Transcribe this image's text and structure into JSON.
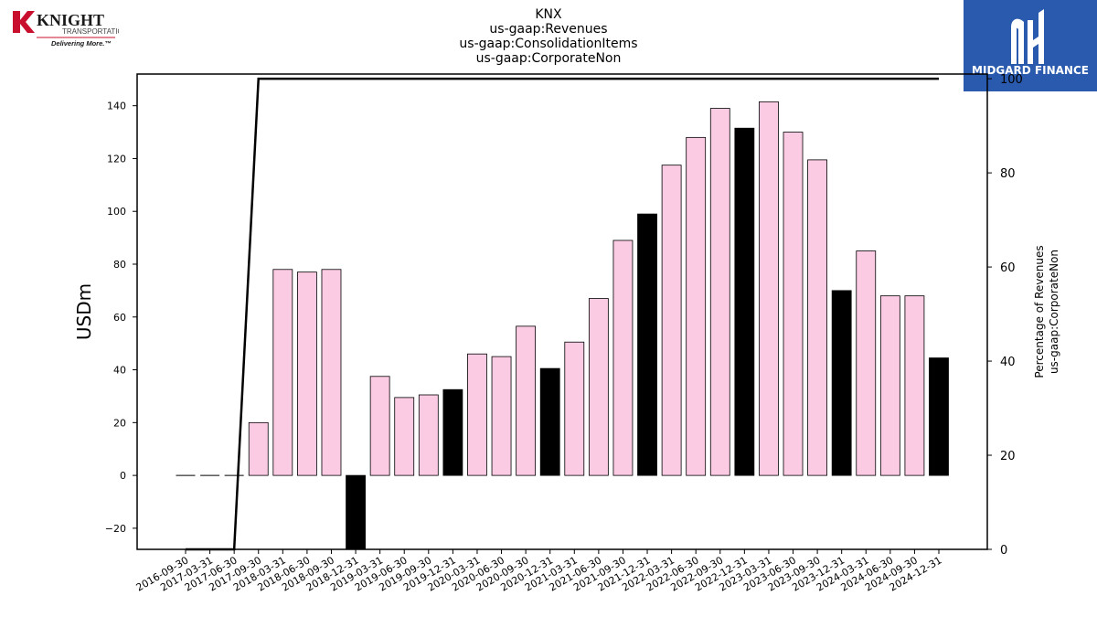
{
  "header": {
    "company_logo": {
      "name": "KNIGHT",
      "sub": "TRANSPORTATION",
      "tagline": "Delivering More.™"
    },
    "brand_logo": {
      "label": "MIDGARD FINANCE",
      "color": "#2a5aad"
    }
  },
  "chart_data": {
    "type": "bar",
    "title": [
      "KNX",
      "us-gaap:Revenues",
      "us-gaap:ConsolidationItems",
      "us-gaap:CorporateNon"
    ],
    "ylabel": "USDm",
    "y2label": [
      "Percentage of Revenues",
      "us-gaap:CorporateNon"
    ],
    "ylim": [
      -28,
      152
    ],
    "y2lim": [
      0,
      101
    ],
    "yticks": [
      -20,
      0,
      20,
      40,
      60,
      80,
      100,
      120,
      140
    ],
    "y2ticks": [
      0,
      20,
      40,
      60,
      80,
      100
    ],
    "colors": {
      "q4": "#000000",
      "other": "#fbcae3",
      "line": "#000000"
    },
    "categories": [
      "2016-09-30",
      "2017-03-31",
      "2017-06-30",
      "2017-09-30",
      "2018-03-31",
      "2018-06-30",
      "2018-09-30",
      "2018-12-31",
      "2019-03-31",
      "2019-06-30",
      "2019-09-30",
      "2019-12-31",
      "2020-03-31",
      "2020-06-30",
      "2020-09-30",
      "2020-12-31",
      "2021-03-31",
      "2021-06-30",
      "2021-09-30",
      "2021-12-31",
      "2022-03-31",
      "2022-06-30",
      "2022-09-30",
      "2022-12-31",
      "2023-03-31",
      "2023-06-30",
      "2023-09-30",
      "2023-12-31",
      "2024-03-31",
      "2024-06-30",
      "2024-09-30",
      "2024-12-31"
    ],
    "series": [
      {
        "type": "bar",
        "values": [
          0,
          0,
          0,
          20,
          78,
          77,
          78,
          -28,
          37.5,
          29.5,
          30.5,
          32.5,
          46,
          45,
          56.5,
          40.5,
          50.5,
          67,
          89,
          99,
          117.5,
          128,
          139,
          131.5,
          141.5,
          130,
          119.5,
          70,
          85,
          68,
          68,
          44.5
        ]
      },
      {
        "type": "line",
        "values": [
          0,
          0,
          0,
          100,
          100,
          100,
          100,
          100,
          100,
          100,
          100,
          100,
          100,
          100,
          100,
          100,
          100,
          100,
          100,
          100,
          100,
          100,
          100,
          100,
          100,
          100,
          100,
          100,
          100,
          100,
          100,
          100
        ]
      }
    ]
  }
}
